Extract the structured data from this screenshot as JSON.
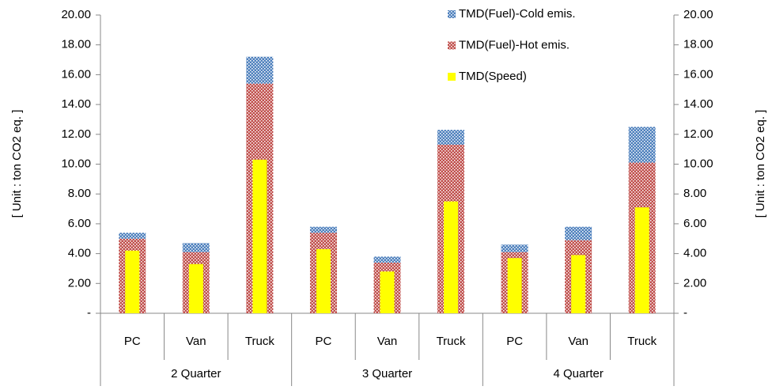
{
  "chart_data": {
    "type": "bar",
    "y_label": "[ Unit : ton CO2 eq. ]",
    "y2_label": "[ Unit : ton CO2 eq. ]",
    "categories": [
      "PC",
      "Van",
      "Truck",
      "PC",
      "Van",
      "Truck",
      "PC",
      "Van",
      "Truck"
    ],
    "groups": [
      "2 Quarter",
      "3 Quarter",
      "4 Quarter"
    ],
    "series": [
      {
        "name": "TMD(Fuel)-Cold emis.",
        "color": "#4f81bd",
        "pattern": "dots",
        "values": [
          0.4,
          0.6,
          1.8,
          0.4,
          0.4,
          1.0,
          0.5,
          0.9,
          2.4
        ]
      },
      {
        "name": "TMD(Fuel)-Hot emis.",
        "color": "#c0504d",
        "pattern": "dots",
        "values": [
          5.0,
          4.1,
          15.4,
          5.4,
          3.4,
          11.3,
          4.1,
          4.9,
          10.1
        ]
      },
      {
        "name": "TMD(Speed)",
        "color": "#ffff00",
        "overlay": true,
        "values": [
          4.2,
          3.3,
          10.3,
          4.3,
          2.8,
          7.5,
          3.7,
          3.9,
          7.1
        ]
      }
    ],
    "ylim": [
      0,
      20
    ],
    "yticks": [
      {
        "value": 0,
        "label": "-"
      },
      {
        "value": 2,
        "label": "2.00"
      },
      {
        "value": 4,
        "label": "4.00"
      },
      {
        "value": 6,
        "label": "6.00"
      },
      {
        "value": 8,
        "label": "8.00"
      },
      {
        "value": 10,
        "label": "10.00"
      },
      {
        "value": 12,
        "label": "12.00"
      },
      {
        "value": 14,
        "label": "14.00"
      },
      {
        "value": 16,
        "label": "16.00"
      },
      {
        "value": 18,
        "label": "18.00"
      },
      {
        "value": 20,
        "label": "20.00"
      }
    ],
    "y2lim": [
      0,
      20
    ],
    "y2ticks": [
      {
        "value": 0,
        "label": "-"
      },
      {
        "value": 2,
        "label": "2.00"
      },
      {
        "value": 4,
        "label": "4.00"
      },
      {
        "value": 6,
        "label": "6.00"
      },
      {
        "value": 8,
        "label": "8.00"
      },
      {
        "value": 10,
        "label": "10.00"
      },
      {
        "value": 12,
        "label": "12.00"
      },
      {
        "value": 14,
        "label": "14.00"
      },
      {
        "value": 16,
        "label": "16.00"
      },
      {
        "value": 18,
        "label": "18.00"
      },
      {
        "value": 20,
        "label": "20.00"
      }
    ],
    "legend": "top-right"
  }
}
